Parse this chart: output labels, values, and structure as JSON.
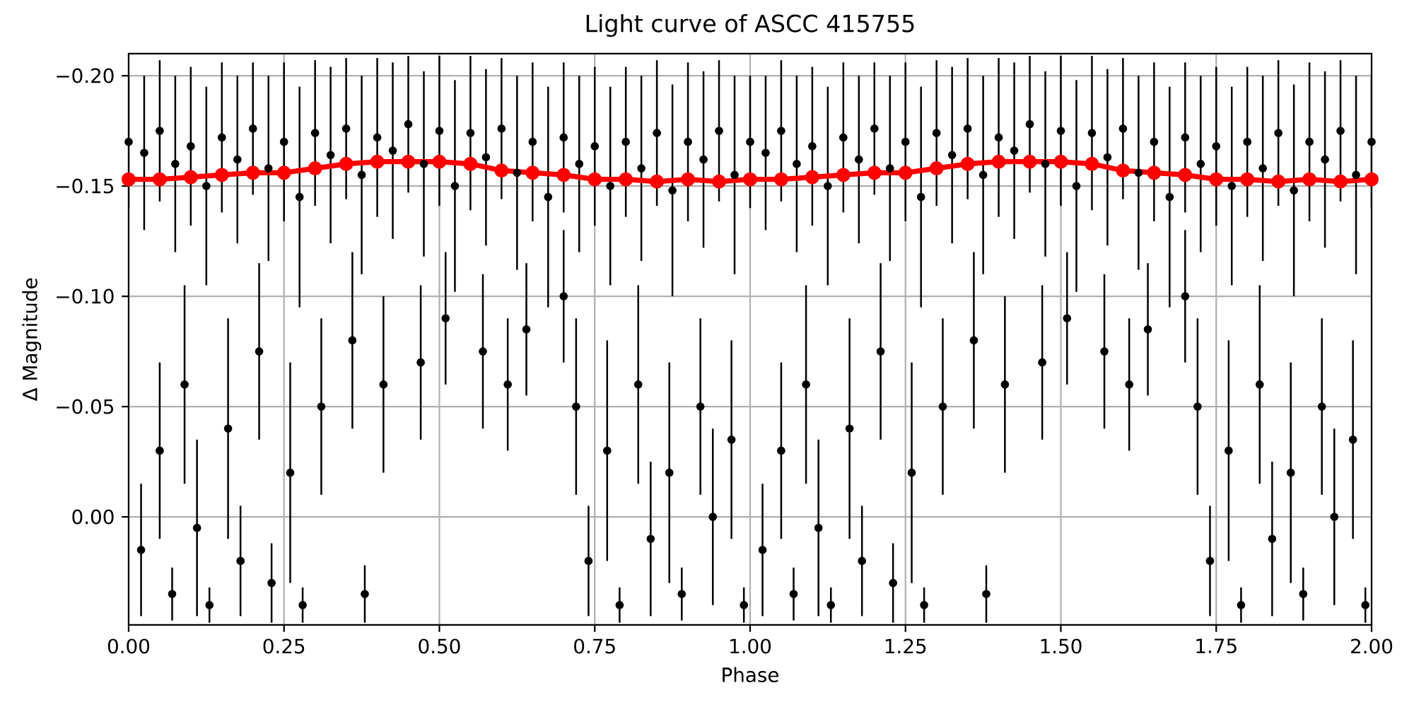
{
  "chart_data": {
    "type": "scatter",
    "title": "Light curve of ASCC 415755",
    "xlabel": "Phase",
    "ylabel": "Δ Magnitude",
    "xlim": [
      0,
      2
    ],
    "ylim": [
      0.049,
      -0.21
    ],
    "xticks": [
      {
        "value": 0,
        "label": "0.00"
      },
      {
        "value": 0.25,
        "label": "0.25"
      },
      {
        "value": 0.5,
        "label": "0.50"
      },
      {
        "value": 0.75,
        "label": "0.75"
      },
      {
        "value": 1,
        "label": "1.00"
      },
      {
        "value": 1.25,
        "label": "1.25"
      },
      {
        "value": 1.5,
        "label": "1.50"
      },
      {
        "value": 1.75,
        "label": "1.75"
      },
      {
        "value": 2,
        "label": "2.00"
      }
    ],
    "yticks": [
      {
        "value": -0.2,
        "label": "−0.20"
      },
      {
        "value": -0.15,
        "label": "−0.15"
      },
      {
        "value": -0.1,
        "label": "−0.10"
      },
      {
        "value": -0.05,
        "label": "−0.05"
      },
      {
        "value": 0,
        "label": "0.00"
      }
    ],
    "grid": true,
    "marker": "circle",
    "series": [
      {
        "color": "#000000",
        "x": [
          0,
          0.025,
          0.05,
          0.075,
          0.1,
          0.125,
          0.15,
          0.175,
          0.2,
          0.225,
          0.25,
          0.275,
          0.3,
          0.325,
          0.35,
          0.375,
          0.4,
          0.425,
          0.45,
          0.475,
          0.5,
          0.525,
          0.55,
          0.575,
          0.6,
          0.625,
          0.65,
          0.675,
          0.7,
          0.725,
          0.75,
          0.775,
          0.8,
          0.825,
          0.85,
          0.875,
          0.9,
          0.925,
          0.95,
          0.975,
          1,
          1.025,
          1.05,
          1.075,
          1.1,
          1.125,
          1.15,
          1.175,
          1.2,
          1.225,
          1.25,
          1.275,
          1.3,
          1.325,
          1.35,
          1.375,
          1.4,
          1.425,
          1.45,
          1.475,
          1.5,
          1.525,
          1.55,
          1.575,
          1.6,
          1.625,
          1.65,
          1.675,
          1.7,
          1.725,
          1.75,
          1.775,
          1.8,
          1.825,
          1.85,
          1.875,
          1.9,
          1.925,
          1.95,
          1.975,
          2,
          0.02,
          0.05,
          0.07,
          0.09,
          0.11,
          0.13,
          0.16,
          0.18,
          0.21,
          0.23,
          0.26,
          0.28,
          0.31,
          0.36,
          0.38,
          0.41,
          0.47,
          0.51,
          0.57,
          0.61,
          0.64,
          0.7,
          0.72,
          0.74,
          0.77,
          0.79,
          0.82,
          0.84,
          0.87,
          0.89,
          0.92,
          0.94,
          0.97,
          0.99,
          1.02,
          1.05,
          1.07,
          1.09,
          1.11,
          1.13,
          1.16,
          1.18,
          1.21,
          1.23,
          1.26,
          1.28,
          1.31,
          1.36,
          1.38,
          1.41,
          1.47,
          1.51,
          1.57,
          1.61,
          1.64,
          1.7,
          1.72,
          1.74,
          1.77,
          1.79,
          1.82,
          1.84,
          1.87,
          1.89,
          1.92,
          1.94,
          1.97,
          1.99
        ],
        "values": [
          -0.17,
          -0.165,
          -0.175,
          -0.16,
          -0.168,
          -0.15,
          -0.172,
          -0.162,
          -0.176,
          -0.158,
          -0.17,
          -0.145,
          -0.174,
          -0.164,
          -0.176,
          -0.155,
          -0.172,
          -0.166,
          -0.178,
          -0.16,
          -0.175,
          -0.15,
          -0.174,
          -0.163,
          -0.176,
          -0.156,
          -0.17,
          -0.145,
          -0.172,
          -0.16,
          -0.168,
          -0.15,
          -0.17,
          -0.158,
          -0.174,
          -0.148,
          -0.17,
          -0.162,
          -0.175,
          -0.155,
          -0.17,
          -0.165,
          -0.175,
          -0.16,
          -0.168,
          -0.15,
          -0.172,
          -0.162,
          -0.176,
          -0.158,
          -0.17,
          -0.145,
          -0.174,
          -0.164,
          -0.176,
          -0.155,
          -0.172,
          -0.166,
          -0.178,
          -0.16,
          -0.175,
          -0.15,
          -0.174,
          -0.163,
          -0.176,
          -0.156,
          -0.17,
          -0.145,
          -0.172,
          -0.16,
          -0.168,
          -0.15,
          -0.17,
          -0.158,
          -0.174,
          -0.148,
          -0.17,
          -0.162,
          -0.175,
          -0.155,
          -0.17,
          0.015,
          -0.03,
          0.035,
          -0.06,
          0.005,
          0.04,
          -0.04,
          0.02,
          -0.075,
          0.03,
          -0.02,
          0.04,
          -0.05,
          -0.08,
          0.035,
          -0.06,
          -0.07,
          -0.09,
          -0.075,
          -0.06,
          -0.085,
          -0.1,
          -0.05,
          0.02,
          -0.03,
          0.04,
          -0.06,
          0.01,
          -0.02,
          0.035,
          -0.05,
          0,
          -0.035,
          0.04,
          0.015,
          -0.03,
          0.035,
          -0.06,
          0.005,
          0.04,
          -0.04,
          0.02,
          -0.075,
          0.03,
          -0.02,
          0.04,
          -0.05,
          -0.08,
          0.035,
          -0.06,
          -0.07,
          -0.09,
          -0.075,
          -0.06,
          -0.085,
          -0.1,
          -0.05,
          0.02,
          -0.03,
          0.04,
          -0.06,
          0.01,
          -0.02,
          0.035,
          -0.05,
          0,
          -0.035,
          0.04
        ],
        "errors": [
          0.03,
          0.035,
          0.032,
          0.04,
          0.036,
          0.045,
          0.034,
          0.038,
          0.03,
          0.042,
          0.036,
          0.05,
          0.033,
          0.04,
          0.032,
          0.045,
          0.036,
          0.04,
          0.031,
          0.042,
          0.034,
          0.048,
          0.035,
          0.04,
          0.032,
          0.044,
          0.036,
          0.05,
          0.034,
          0.04,
          0.036,
          0.045,
          0.034,
          0.042,
          0.033,
          0.048,
          0.036,
          0.04,
          0.032,
          0.045,
          0.03,
          0.035,
          0.032,
          0.04,
          0.036,
          0.045,
          0.034,
          0.038,
          0.03,
          0.042,
          0.036,
          0.05,
          0.033,
          0.04,
          0.032,
          0.045,
          0.036,
          0.04,
          0.031,
          0.042,
          0.034,
          0.048,
          0.035,
          0.04,
          0.032,
          0.044,
          0.036,
          0.05,
          0.034,
          0.04,
          0.036,
          0.045,
          0.034,
          0.042,
          0.033,
          0.048,
          0.036,
          0.04,
          0.032,
          0.045,
          0.03,
          0.03,
          0.04,
          0.012,
          0.045,
          0.04,
          0.008,
          0.05,
          0.025,
          0.04,
          0.018,
          0.05,
          0.008,
          0.04,
          0.04,
          0.013,
          0.04,
          0.035,
          0.03,
          0.035,
          0.03,
          0.03,
          0.03,
          0.04,
          0.025,
          0.05,
          0.008,
          0.045,
          0.035,
          0.05,
          0.012,
          0.04,
          0.04,
          0.045,
          0.008,
          0.03,
          0.04,
          0.012,
          0.045,
          0.04,
          0.008,
          0.05,
          0.025,
          0.04,
          0.018,
          0.05,
          0.008,
          0.04,
          0.04,
          0.013,
          0.04,
          0.035,
          0.03,
          0.035,
          0.03,
          0.03,
          0.03,
          0.04,
          0.025,
          0.05,
          0.008,
          0.045,
          0.035,
          0.05,
          0.012,
          0.04,
          0.04,
          0.045,
          0.008
        ]
      },
      {
        "type": "line",
        "color": "#ff0000",
        "x": [
          0,
          0.05,
          0.1,
          0.15,
          0.2,
          0.25,
          0.3,
          0.35,
          0.4,
          0.45,
          0.5,
          0.55,
          0.6,
          0.65,
          0.7,
          0.75,
          0.8,
          0.85,
          0.9,
          0.95,
          1,
          1.05,
          1.1,
          1.15,
          1.2,
          1.25,
          1.3,
          1.35,
          1.4,
          1.45,
          1.5,
          1.55,
          1.6,
          1.65,
          1.7,
          1.75,
          1.8,
          1.85,
          1.9,
          1.95,
          2
        ],
        "values": [
          -0.153,
          -0.153,
          -0.154,
          -0.155,
          -0.156,
          -0.156,
          -0.158,
          -0.16,
          -0.161,
          -0.161,
          -0.161,
          -0.16,
          -0.157,
          -0.156,
          -0.155,
          -0.153,
          -0.153,
          -0.152,
          -0.153,
          -0.152,
          -0.153,
          -0.153,
          -0.154,
          -0.155,
          -0.156,
          -0.156,
          -0.158,
          -0.16,
          -0.161,
          -0.161,
          -0.161,
          -0.16,
          -0.157,
          -0.156,
          -0.155,
          -0.153,
          -0.153,
          -0.152,
          -0.153,
          -0.152,
          -0.153
        ]
      }
    ]
  }
}
